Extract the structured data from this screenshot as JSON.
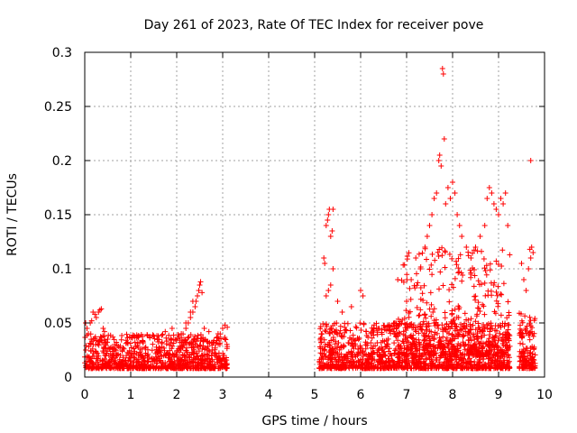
{
  "chart_data": {
    "type": "scatter",
    "title": "Day 261 of 2023, Rate Of TEC Index for receiver pove",
    "xlabel": "GPS time / hours",
    "ylabel": "ROTI / TECUs",
    "xlim": [
      0,
      10
    ],
    "ylim": [
      0,
      0.3
    ],
    "xticks": [
      "0",
      "1",
      "2",
      "3",
      "4",
      "5",
      "6",
      "7",
      "8",
      "9",
      "10"
    ],
    "yticks": [
      "0",
      "0.05",
      "0.1",
      "0.15",
      "0.2",
      "0.25",
      "0.3"
    ],
    "grid": true,
    "marker": "+",
    "color": "#ff0000",
    "clusters": [
      {
        "x_start": 0.0,
        "x_end": 3.1,
        "y_min": 0.008,
        "y_max": 0.04,
        "count": 900
      },
      {
        "x_start": 5.1,
        "x_end": 9.25,
        "y_min": 0.008,
        "y_max": 0.05,
        "count": 1300
      },
      {
        "x_start": 6.8,
        "x_end": 9.25,
        "y_min": 0.02,
        "y_max": 0.12,
        "count": 450
      },
      {
        "x_start": 9.45,
        "x_end": 9.8,
        "y_min": 0.008,
        "y_max": 0.06,
        "count": 140
      }
    ],
    "series": [
      {
        "name": "ROTI",
        "x": [
          0.02,
          0.05,
          0.08,
          0.12,
          0.15,
          0.18,
          0.22,
          0.25,
          0.3,
          0.33,
          0.36,
          0.4,
          0.43,
          0.5,
          2.1,
          2.2,
          2.25,
          2.3,
          2.35,
          2.4,
          2.42,
          2.45,
          2.48,
          2.5,
          2.52,
          2.55,
          2.35,
          2.3,
          2.2,
          1.9,
          1.75,
          1.5,
          2.6,
          2.7,
          2.9,
          3.0,
          3.05,
          3.1,
          5.2,
          5.22,
          5.25,
          5.28,
          5.3,
          5.32,
          5.35,
          5.38,
          5.4,
          5.25,
          5.3,
          5.35,
          5.4,
          5.5,
          5.6,
          5.8,
          6.0,
          6.05,
          7.0,
          7.1,
          7.2,
          7.3,
          7.4,
          7.45,
          7.5,
          7.55,
          7.6,
          7.65,
          7.7,
          7.72,
          7.75,
          7.78,
          7.8,
          7.82,
          7.85,
          7.9,
          7.95,
          8.0,
          8.05,
          8.1,
          8.15,
          8.2,
          8.3,
          8.4,
          8.5,
          8.6,
          8.7,
          8.75,
          8.8,
          8.85,
          8.9,
          8.95,
          9.0,
          9.05,
          9.1,
          9.15,
          9.2,
          9.5,
          9.55,
          9.6,
          9.65,
          9.7,
          9.72,
          9.75,
          9.7,
          9.68
        ],
        "y": [
          0.05,
          0.045,
          0.04,
          0.05,
          0.052,
          0.06,
          0.058,
          0.055,
          0.06,
          0.062,
          0.063,
          0.045,
          0.042,
          0.035,
          0.04,
          0.045,
          0.05,
          0.055,
          0.06,
          0.065,
          0.07,
          0.075,
          0.08,
          0.085,
          0.088,
          0.078,
          0.07,
          0.06,
          0.05,
          0.045,
          0.042,
          0.038,
          0.045,
          0.042,
          0.04,
          0.045,
          0.048,
          0.046,
          0.11,
          0.105,
          0.14,
          0.145,
          0.15,
          0.155,
          0.13,
          0.135,
          0.155,
          0.075,
          0.08,
          0.085,
          0.1,
          0.07,
          0.06,
          0.065,
          0.08,
          0.075,
          0.07,
          0.09,
          0.11,
          0.1,
          0.12,
          0.13,
          0.14,
          0.15,
          0.165,
          0.17,
          0.2,
          0.205,
          0.195,
          0.285,
          0.28,
          0.22,
          0.16,
          0.175,
          0.165,
          0.18,
          0.17,
          0.15,
          0.14,
          0.13,
          0.12,
          0.11,
          0.12,
          0.13,
          0.14,
          0.165,
          0.175,
          0.17,
          0.16,
          0.155,
          0.15,
          0.165,
          0.16,
          0.17,
          0.14,
          0.105,
          0.09,
          0.08,
          0.1,
          0.11,
          0.12,
          0.115,
          0.2,
          0.118
        ]
      }
    ]
  }
}
